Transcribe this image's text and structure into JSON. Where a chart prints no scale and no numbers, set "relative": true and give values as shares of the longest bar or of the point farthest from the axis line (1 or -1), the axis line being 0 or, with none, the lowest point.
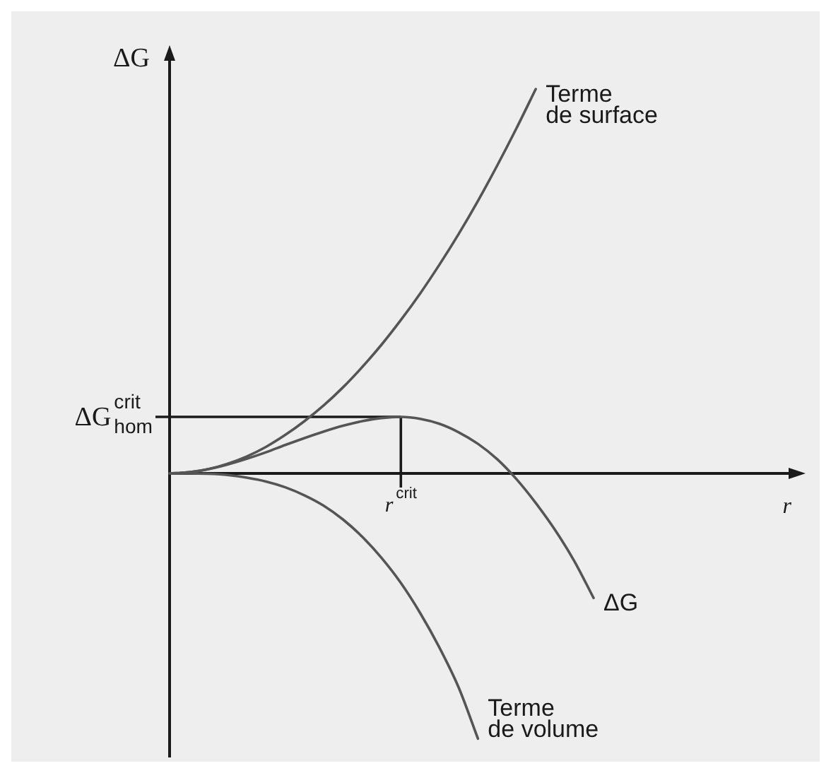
{
  "chart_data": {
    "type": "line",
    "xlabel": "r",
    "ylabel": "ΔG",
    "relative": true,
    "categories": [
      null,
      null,
      null,
      null,
      null,
      null,
      null,
      null,
      null,
      null,
      null,
      null,
      null,
      null,
      null,
      null,
      null,
      null,
      null,
      null,
      null,
      null,
      null,
      null,
      null,
      null,
      null,
      null,
      null,
      null,
      null,
      null,
      null,
      null
    ],
    "series": [
      {
        "name": "Terme de surface",
        "color": "#555555",
        "values": [
          0,
          0.003,
          0.011,
          0.025,
          0.044,
          0.069,
          0.1,
          0.136,
          0.177,
          0.224,
          0.277,
          0.335,
          0.399,
          0.468,
          0.543,
          0.623,
          0.709,
          0.801,
          0.898,
          1.0,
          null,
          null,
          null,
          null,
          null,
          null,
          null,
          null,
          null,
          null,
          null,
          null,
          null,
          null
        ]
      },
      {
        "name": "ΔG",
        "color": "#555555",
        "values": [
          0,
          0.003,
          0.011,
          0.023,
          0.038,
          0.055,
          0.074,
          0.092,
          0.109,
          0.124,
          0.136,
          0.144,
          0.147,
          0.142,
          0.129,
          0.107,
          0.077,
          0.037,
          -0.015,
          -0.077,
          -0.147,
          -0.228,
          -0.324,
          null,
          null,
          null,
          null,
          null,
          null,
          null,
          null,
          null,
          null,
          null
        ]
      },
      {
        "name": "Terme de volume",
        "color": "#555555",
        "values": [
          0,
          0,
          -0.001,
          -0.004,
          -0.011,
          -0.021,
          -0.036,
          -0.057,
          -0.084,
          -0.12,
          -0.165,
          -0.22,
          -0.285,
          -0.363,
          -0.453,
          -0.557,
          -0.69,
          null,
          null,
          null,
          null,
          null,
          null,
          null,
          null,
          null,
          null,
          null,
          null,
          null,
          null,
          null,
          null,
          null
        ]
      }
    ],
    "ref_lines": [
      {
        "axis": "y",
        "value": 0.147,
        "label": "ΔG$^{crit}$$_{hom}$"
      }
    ],
    "annotations": [
      "r$^{crit}$"
    ]
  }
}
